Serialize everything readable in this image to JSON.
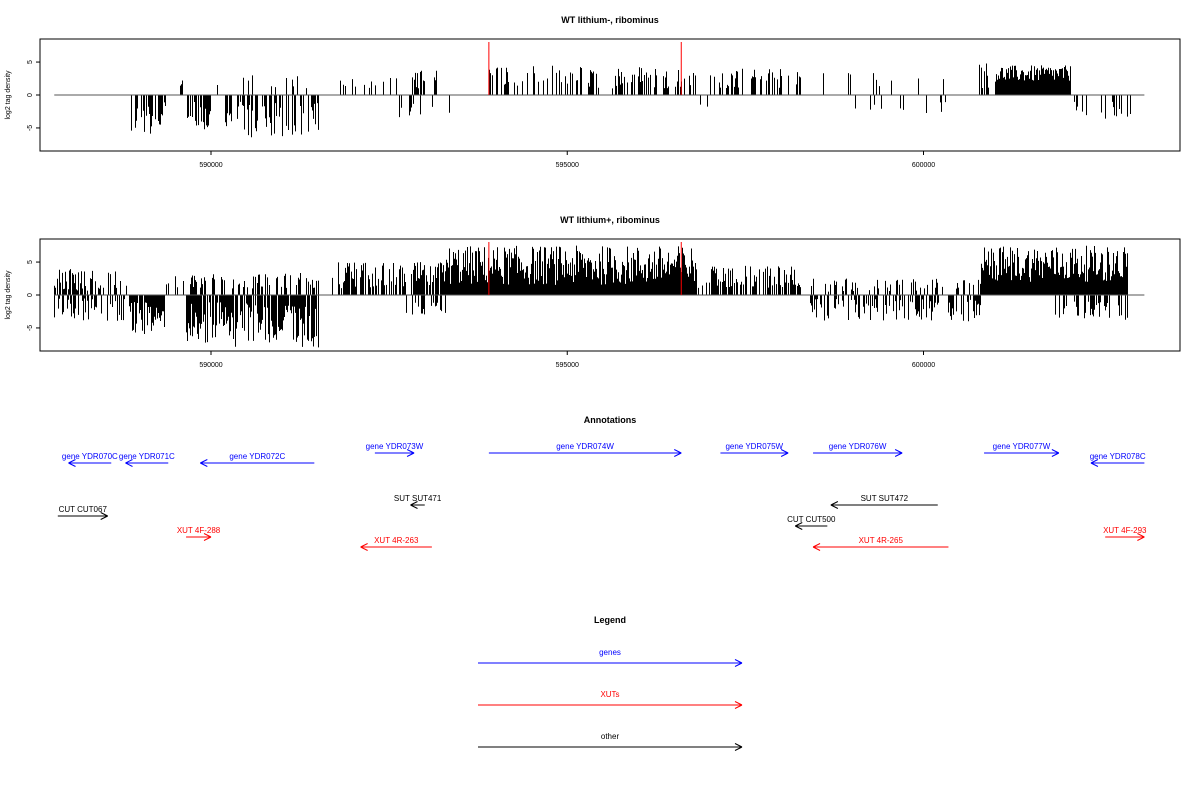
{
  "chart_data": [
    {
      "type": "bar",
      "title": "WT lithium-, ribominus",
      "xlabel": "",
      "ylabel": "log2 tag density",
      "xlim": [
        587600,
        603600
      ],
      "ylim": [
        -8.5,
        8.5
      ],
      "x_ticks": [
        590000,
        595000,
        600000
      ],
      "y_ticks": [
        -5,
        0,
        5
      ],
      "x_tick_labels": [
        "590000",
        "595000",
        "600000"
      ],
      "y_tick_labels": [
        "-5",
        "0",
        "5"
      ],
      "markers": [
        593900,
        596600
      ],
      "marker_color": "#ff0000",
      "bar_color": "#000000",
      "series": [
        {
          "segments": [
            {
              "start": 588000,
              "end": 588050,
              "density": 0.04,
              "min": 1.0,
              "max": 2.0,
              "sign": -1
            },
            {
              "start": 588850,
              "end": 589350,
              "density": 0.65,
              "min": 1.0,
              "max": 6.0,
              "sign": -1
            },
            {
              "start": 589550,
              "end": 589650,
              "density": 0.45,
              "min": 1.0,
              "max": 2.5,
              "sign": 1
            },
            {
              "start": 589650,
              "end": 590000,
              "density": 0.65,
              "min": 1.0,
              "max": 5.5,
              "sign": -1
            },
            {
              "start": 590000,
              "end": 590150,
              "density": 0.3,
              "min": 1.0,
              "max": 3.0,
              "sign": 1
            },
            {
              "start": 590150,
              "end": 591500,
              "density": 0.5,
              "min": 1.0,
              "max": 6.5,
              "sign": -1
            },
            {
              "start": 590400,
              "end": 591400,
              "density": 0.15,
              "min": 1.0,
              "max": 3.0,
              "sign": 1
            },
            {
              "start": 591800,
              "end": 592300,
              "density": 0.1,
              "min": 1.0,
              "max": 3.0,
              "sign": 1
            },
            {
              "start": 592350,
              "end": 593200,
              "density": 0.3,
              "min": 1.0,
              "max": 3.8,
              "sign": 1
            },
            {
              "start": 592600,
              "end": 593100,
              "density": 0.1,
              "min": 1.0,
              "max": 3.5,
              "sign": -1
            },
            {
              "start": 593300,
              "end": 593400,
              "density": 0.2,
              "min": 1.0,
              "max": 4.0,
              "sign": -1
            },
            {
              "start": 593900,
              "end": 596800,
              "density": 0.4,
              "min": 1.0,
              "max": 4.5,
              "sign": 1
            },
            {
              "start": 596700,
              "end": 597000,
              "density": 0.15,
              "min": 1.0,
              "max": 2.0,
              "sign": -1
            },
            {
              "start": 597000,
              "end": 598300,
              "density": 0.4,
              "min": 1.0,
              "max": 4.0,
              "sign": 1
            },
            {
              "start": 598400,
              "end": 600300,
              "density": 0.08,
              "min": 1.0,
              "max": 3.5,
              "sign": 1
            },
            {
              "start": 598800,
              "end": 600300,
              "density": 0.05,
              "min": 1.0,
              "max": 3.0,
              "sign": -1
            },
            {
              "start": 600750,
              "end": 601000,
              "density": 0.3,
              "min": 1.0,
              "max": 5.0,
              "sign": 1
            },
            {
              "start": 601000,
              "end": 602050,
              "density": 1.0,
              "min": 2.0,
              "max": 4.5,
              "sign": 1
            },
            {
              "start": 602050,
              "end": 602900,
              "density": 0.3,
              "min": 1.0,
              "max": 4.0,
              "sign": -1
            }
          ]
        }
      ]
    },
    {
      "type": "bar",
      "title": "WT lithium+, ribominus",
      "xlabel": "",
      "ylabel": "log2 tag density",
      "xlim": [
        587600,
        603600
      ],
      "ylim": [
        -8.5,
        8.5
      ],
      "x_ticks": [
        590000,
        595000,
        600000
      ],
      "y_ticks": [
        -5,
        0,
        5
      ],
      "x_tick_labels": [
        "590000",
        "595000",
        "600000"
      ],
      "y_tick_labels": [
        "-5",
        "0",
        "5"
      ],
      "markers": [
        593900,
        596600
      ],
      "marker_color": "#ff0000",
      "bar_color": "#000000",
      "series": [
        {
          "segments": [
            {
              "start": 587800,
              "end": 588800,
              "density": 0.45,
              "min": 0.5,
              "max": 4.0,
              "sign": 1
            },
            {
              "start": 587800,
              "end": 588800,
              "density": 0.45,
              "min": 0.5,
              "max": 4.0,
              "sign": -1
            },
            {
              "start": 588850,
              "end": 589350,
              "density": 0.85,
              "min": 1.0,
              "max": 6.0,
              "sign": -1
            },
            {
              "start": 589350,
              "end": 589650,
              "density": 0.4,
              "min": 1.0,
              "max": 3.0,
              "sign": 1
            },
            {
              "start": 589650,
              "end": 591500,
              "density": 0.85,
              "min": 1.0,
              "max": 8.0,
              "sign": -1
            },
            {
              "start": 589650,
              "end": 591500,
              "density": 0.4,
              "min": 1.0,
              "max": 3.5,
              "sign": 1
            },
            {
              "start": 591700,
              "end": 593300,
              "density": 0.7,
              "min": 1.0,
              "max": 5.0,
              "sign": 1
            },
            {
              "start": 592500,
              "end": 593300,
              "density": 0.3,
              "min": 1.0,
              "max": 3.0,
              "sign": -1
            },
            {
              "start": 593300,
              "end": 596800,
              "density": 1.0,
              "min": 1.5,
              "max": 7.5,
              "sign": 1
            },
            {
              "start": 596800,
              "end": 598300,
              "density": 0.6,
              "min": 1.0,
              "max": 4.5,
              "sign": 1
            },
            {
              "start": 598400,
              "end": 600800,
              "density": 0.5,
              "min": 0.5,
              "max": 4.0,
              "sign": -1
            },
            {
              "start": 598400,
              "end": 600800,
              "density": 0.3,
              "min": 0.5,
              "max": 2.5,
              "sign": 1
            },
            {
              "start": 600800,
              "end": 602850,
              "density": 1.0,
              "min": 2.0,
              "max": 7.5,
              "sign": 1
            },
            {
              "start": 601800,
              "end": 602850,
              "density": 0.5,
              "min": 1.0,
              "max": 4.0,
              "sign": -1
            }
          ]
        }
      ]
    }
  ],
  "annotations": {
    "title": "Annotations",
    "tracks": [
      {
        "label": "gene YDR070C",
        "start": 588000,
        "end": 588600,
        "strand": "-",
        "row": 1,
        "color": "#0000ff"
      },
      {
        "label": "gene YDR071C",
        "start": 588800,
        "end": 589400,
        "strand": "-",
        "row": 1,
        "color": "#0000ff"
      },
      {
        "label": "gene YDR072C",
        "start": 589850,
        "end": 591450,
        "strand": "-",
        "row": 1,
        "color": "#0000ff"
      },
      {
        "label": "gene YDR073W",
        "start": 592300,
        "end": 592850,
        "strand": "+",
        "row": 0,
        "color": "#0000ff"
      },
      {
        "label": "gene YDR074W",
        "start": 593900,
        "end": 596600,
        "strand": "+",
        "row": 0,
        "color": "#0000ff"
      },
      {
        "label": "gene YDR075W",
        "start": 597150,
        "end": 598100,
        "strand": "+",
        "row": 0,
        "color": "#0000ff"
      },
      {
        "label": "gene YDR076W",
        "start": 598450,
        "end": 599700,
        "strand": "+",
        "row": 0,
        "color": "#0000ff"
      },
      {
        "label": "gene YDR077W",
        "start": 600850,
        "end": 601900,
        "strand": "+",
        "row": 0,
        "color": "#0000ff"
      },
      {
        "label": "gene YDR078C",
        "start": 602350,
        "end": 603100,
        "strand": "-",
        "row": 1,
        "color": "#0000ff"
      },
      {
        "label": "SUT SUT471",
        "start": 592800,
        "end": 593000,
        "strand": "-",
        "row": 2,
        "color": "#000000"
      },
      {
        "label": "SUT SUT472",
        "start": 598700,
        "end": 600200,
        "strand": "-",
        "row": 2,
        "color": "#000000"
      },
      {
        "label": "CUT CUT067",
        "start": 587850,
        "end": 588550,
        "strand": "+",
        "row": 3,
        "color": "#000000"
      },
      {
        "label": "CUT CUT500",
        "start": 598200,
        "end": 598650,
        "strand": "-",
        "row": 4,
        "color": "#000000"
      },
      {
        "label": "XUT 4F-288",
        "start": 589650,
        "end": 590000,
        "strand": "+",
        "row": 5,
        "color": "#ff0000"
      },
      {
        "label": "XUT 4R-263",
        "start": 592100,
        "end": 593100,
        "strand": "-",
        "row": 6,
        "color": "#ff0000"
      },
      {
        "label": "XUT 4R-265",
        "start": 598450,
        "end": 600350,
        "strand": "-",
        "row": 6,
        "color": "#ff0000"
      },
      {
        "label": "XUT 4F-293",
        "start": 602550,
        "end": 603100,
        "strand": "+",
        "row": 5,
        "color": "#ff0000"
      }
    ]
  },
  "legend": {
    "title": "Legend",
    "items": [
      {
        "label": "genes",
        "color": "#0000ff"
      },
      {
        "label": "XUTs",
        "color": "#ff0000"
      },
      {
        "label": "other",
        "color": "#000000"
      }
    ]
  }
}
